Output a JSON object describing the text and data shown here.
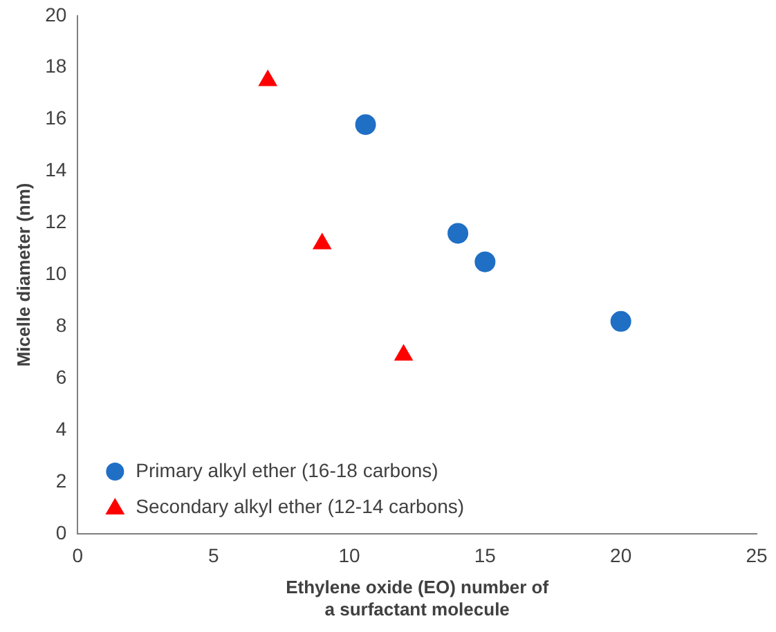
{
  "chart_data": {
    "type": "scatter",
    "xlabel": "Ethylene oxide (EO) number of\na surfactant molecule",
    "ylabel": "Micelle diameter (nm)",
    "xlim": [
      0,
      25
    ],
    "xticks": [
      0,
      5,
      10,
      15,
      20,
      25
    ],
    "ylim": [
      0,
      20
    ],
    "yticks": [
      0,
      2,
      4,
      6,
      8,
      10,
      12,
      14,
      16,
      18,
      20
    ],
    "grid": false,
    "legend": "bottom left",
    "series": [
      {
        "name": "Primary alkyl ether (16-18 carbons)",
        "color": "#1f6fc5",
        "marker": "circle",
        "x": [
          10.6,
          14,
          15,
          20
        ],
        "values": [
          15.8,
          11.6,
          10.5,
          8.2
        ]
      },
      {
        "name": "Secondary alkyl ether (12-14 carbons)",
        "color": "#ff0000",
        "marker": "triangle",
        "x": [
          7,
          9,
          12
        ],
        "values": [
          17.5,
          11.2,
          6.9
        ]
      }
    ]
  }
}
